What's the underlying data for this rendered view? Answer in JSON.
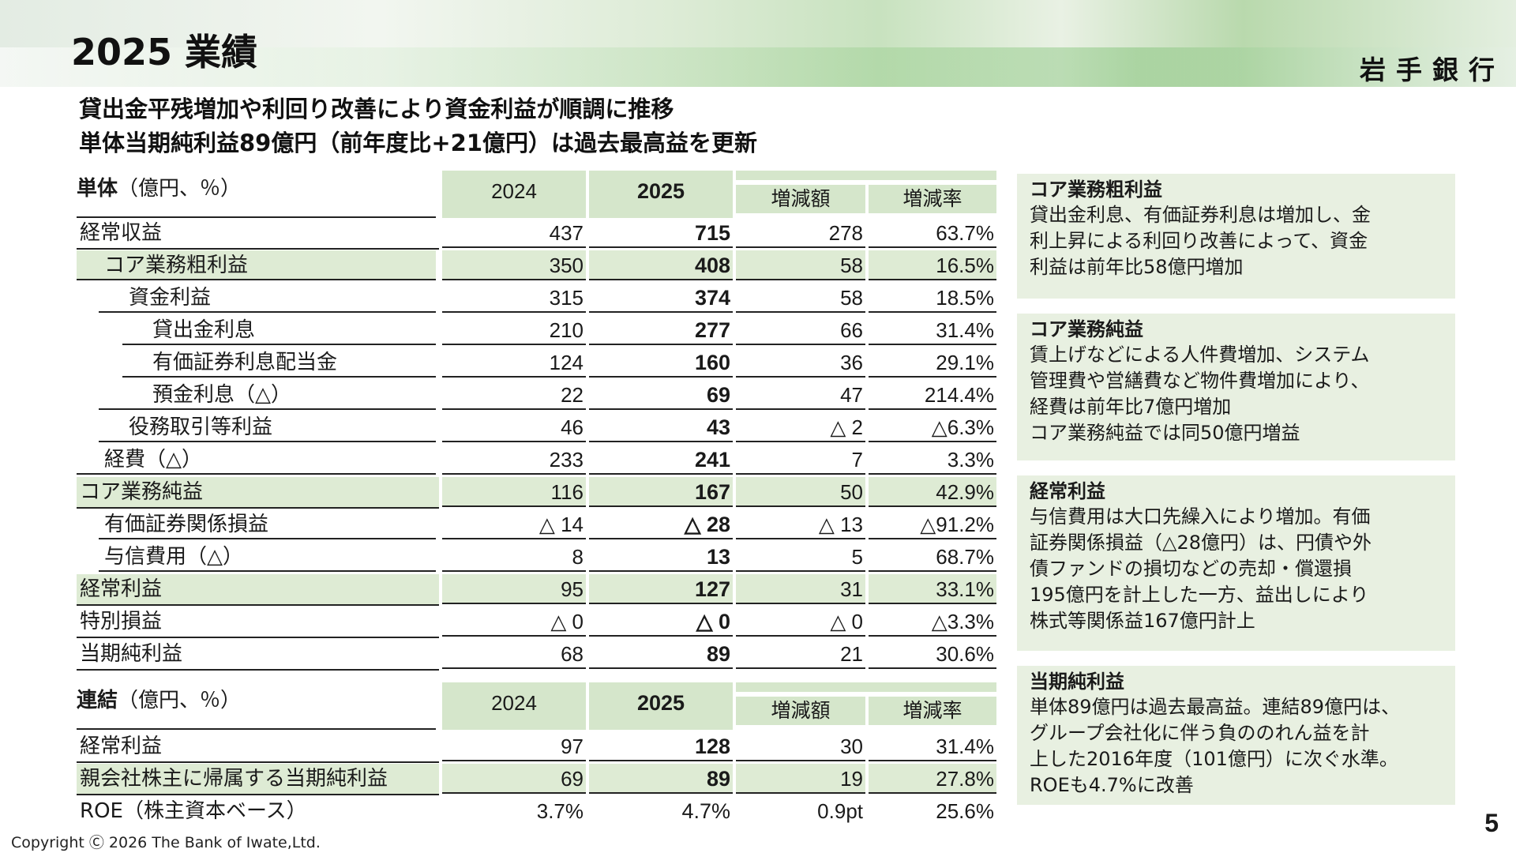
{
  "header": {
    "title": "2025 業績",
    "bank_name": "岩手銀行"
  },
  "headlines": [
    "貸出金平残増加や利回り改善により資金利益が順調に推移",
    "単体当期純利益89億円（前年度比+21億円）は過去最高益を更新"
  ],
  "single_table": {
    "label_bold": "単体",
    "label_unit": "（億円、％）",
    "col_2024": "2024",
    "col_2025": "2025",
    "col_diff": "増減額",
    "col_rate": "増減率",
    "rows": [
      {
        "label": "経常収益",
        "v2024": "437",
        "v2025": "715",
        "diff": "278",
        "rate": "63.7%"
      },
      {
        "label": "コア業務粗利益",
        "v2024": "350",
        "v2025": "408",
        "diff": "58",
        "rate": "16.5%"
      },
      {
        "label": "資金利益",
        "v2024": "315",
        "v2025": "374",
        "diff": "58",
        "rate": "18.5%"
      },
      {
        "label": "貸出金利息",
        "v2024": "210",
        "v2025": "277",
        "diff": "66",
        "rate": "31.4%"
      },
      {
        "label": "有価証券利息配当金",
        "v2024": "124",
        "v2025": "160",
        "diff": "36",
        "rate": "29.1%"
      },
      {
        "label": "預金利息（△）",
        "v2024": "22",
        "v2025": "69",
        "diff": "47",
        "rate": "214.4%"
      },
      {
        "label": "役務取引等利益",
        "v2024": "46",
        "v2025": "43",
        "diff": "△ 2",
        "rate": "△6.3%"
      },
      {
        "label": "経費（△）",
        "v2024": "233",
        "v2025": "241",
        "diff": "7",
        "rate": "3.3%"
      },
      {
        "label": "コア業務純益",
        "v2024": "116",
        "v2025": "167",
        "diff": "50",
        "rate": "42.9%"
      },
      {
        "label": "有価証券関係損益",
        "v2024": "△ 14",
        "v2025": "△ 28",
        "diff": "△ 13",
        "rate": "△91.2%"
      },
      {
        "label": "与信費用（△）",
        "v2024": "8",
        "v2025": "13",
        "diff": "5",
        "rate": "68.7%"
      },
      {
        "label": "経常利益",
        "v2024": "95",
        "v2025": "127",
        "diff": "31",
        "rate": "33.1%"
      },
      {
        "label": "特別損益",
        "v2024": "△ 0",
        "v2025": "△ 0",
        "diff": "△ 0",
        "rate": "△3.3%"
      },
      {
        "label": "当期純利益",
        "v2024": "68",
        "v2025": "89",
        "diff": "21",
        "rate": "30.6%"
      }
    ]
  },
  "consolidated_table": {
    "label_bold": "連結",
    "label_unit": "（億円、％）",
    "col_2024": "2024",
    "col_2025": "2025",
    "col_diff": "増減額",
    "col_rate": "増減率",
    "rows": [
      {
        "label": "経常利益",
        "v2024": "97",
        "v2025": "128",
        "diff": "30",
        "rate": "31.4%"
      },
      {
        "label": "親会社株主に帰属する当期純利益",
        "v2024": "69",
        "v2025": "89",
        "diff": "19",
        "rate": "27.8%"
      },
      {
        "label": "ROE（株主資本ベース）",
        "v2024": "3.7%",
        "v2025": "4.7%",
        "diff": "0.9pt",
        "rate": "25.6%"
      }
    ]
  },
  "notes": [
    {
      "title": "コア業務粗利益",
      "lines": [
        "貸出金利息、有価証券利息は増加し、金",
        "利上昇による利回り改善によって、資金",
        "利益は前年比58億円増加"
      ]
    },
    {
      "title": "コア業務純益",
      "lines": [
        "賃上げなどによる人件費増加、システム",
        "管理費や営繕費など物件費増加により、",
        "経費は前年比7億円増加",
        "コア業務純益では同50億円増益"
      ]
    },
    {
      "title": "経常利益",
      "lines": [
        "与信費用は大口先繰入により増加。有価",
        "証券関係損益（△28億円）は、円債や外",
        "債ファンドの損切などの売却・償還損",
        "195億円を計上した一方、益出しにより",
        "株式等関係益167億円計上"
      ]
    },
    {
      "title": "当期純利益",
      "lines": [
        "単体89億円は過去最高益。連結89億円は、",
        "グループ会社化に伴う負ののれん益を計",
        "上した2016年度（101億円）に次ぐ水準。",
        "ROEも4.7%に改善"
      ]
    }
  ],
  "footer": {
    "copyright": "Copyright Ⓒ 2026 The Bank of Iwate,Ltd.",
    "page_number": "5"
  }
}
